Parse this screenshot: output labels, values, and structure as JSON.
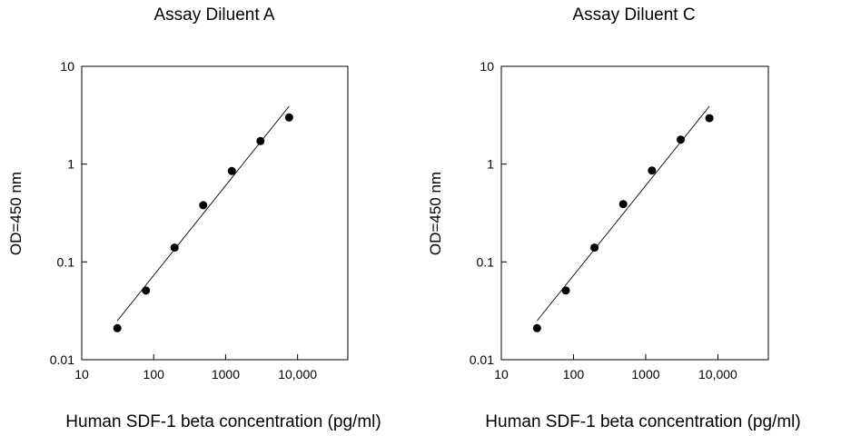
{
  "chart_data": [
    {
      "type": "scatter",
      "title": "Assay Diluent A",
      "xlabel": "Human SDF-1 beta concentration (pg/ml)",
      "ylabel": "OD=450 nm",
      "xscale": "log",
      "yscale": "log",
      "xlim": [
        10,
        50000
      ],
      "ylim": [
        0.01,
        10
      ],
      "xticks": [
        10,
        100,
        1000,
        10000
      ],
      "xtick_labels": [
        "10",
        "100",
        "1000",
        "10,000"
      ],
      "yticks": [
        0.01,
        0.1,
        1,
        10
      ],
      "ytick_labels": [
        "0.01",
        "0.1",
        "1",
        "10"
      ],
      "grid": false,
      "series": [
        {
          "x": [
            31.25,
            78.13,
            195.3,
            488.3,
            1221,
            3052,
            7630
          ],
          "y": [
            0.021,
            0.051,
            0.14,
            0.38,
            0.85,
            1.72,
            3.0
          ]
        }
      ],
      "fit_line": {
        "x": [
          31.25,
          7630
        ],
        "y": [
          0.025,
          3.9
        ]
      }
    },
    {
      "type": "scatter",
      "title": "Assay Diluent C",
      "xlabel": "Human SDF-1 beta concentration (pg/ml)",
      "ylabel": "OD=450 nm",
      "xscale": "log",
      "yscale": "log",
      "xlim": [
        10,
        50000
      ],
      "ylim": [
        0.01,
        10
      ],
      "xticks": [
        10,
        100,
        1000,
        10000
      ],
      "xtick_labels": [
        "10",
        "100",
        "1000",
        "10,000"
      ],
      "yticks": [
        0.01,
        0.1,
        1,
        10
      ],
      "ytick_labels": [
        "0.01",
        "0.1",
        "1",
        "10"
      ],
      "grid": false,
      "series": [
        {
          "x": [
            31.25,
            78.13,
            195.3,
            488.3,
            1221,
            3052,
            7630
          ],
          "y": [
            0.021,
            0.051,
            0.14,
            0.39,
            0.86,
            1.78,
            2.95
          ]
        }
      ],
      "fit_line": {
        "x": [
          31.25,
          7630
        ],
        "y": [
          0.025,
          3.9
        ]
      }
    }
  ]
}
